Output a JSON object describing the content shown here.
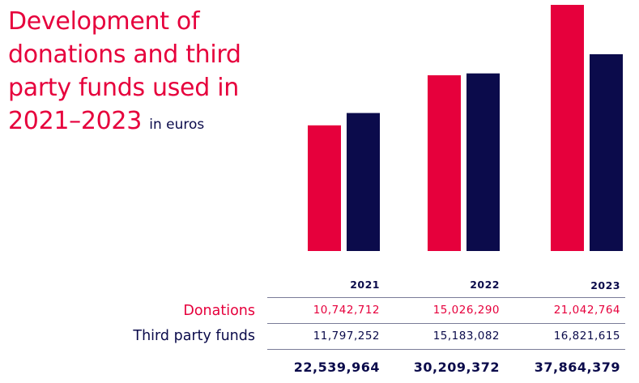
{
  "title": {
    "main": "Development of donations and third party funds used in 2021–2023",
    "unit": "in euros"
  },
  "colors": {
    "donations": "#e6003c",
    "third_party": "#0b0b4b"
  },
  "chart_data": {
    "type": "bar",
    "title": "Development of donations and third party funds used in 2021–2023",
    "ylabel": "in euros",
    "categories": [
      "2021",
      "2022",
      "2023"
    ],
    "series": [
      {
        "name": "Donations",
        "values": [
          10742712,
          15026290,
          21042764
        ]
      },
      {
        "name": "Third party funds",
        "values": [
          11797252,
          15183082,
          16821615
        ]
      }
    ],
    "ylim": [
      0,
      21042764
    ],
    "grid": false
  },
  "table": {
    "years": [
      "2021",
      "2022",
      "2023"
    ],
    "rows": [
      {
        "label": "Donations",
        "values": [
          "10,742,712",
          "15,026,290",
          "21,042,764"
        ]
      },
      {
        "label": "Third party funds",
        "values": [
          "11,797,252",
          "15,183,082",
          "16,821,615"
        ]
      }
    ],
    "totals": [
      "22,539,964",
      "30,209,372",
      "37,864,379"
    ]
  }
}
